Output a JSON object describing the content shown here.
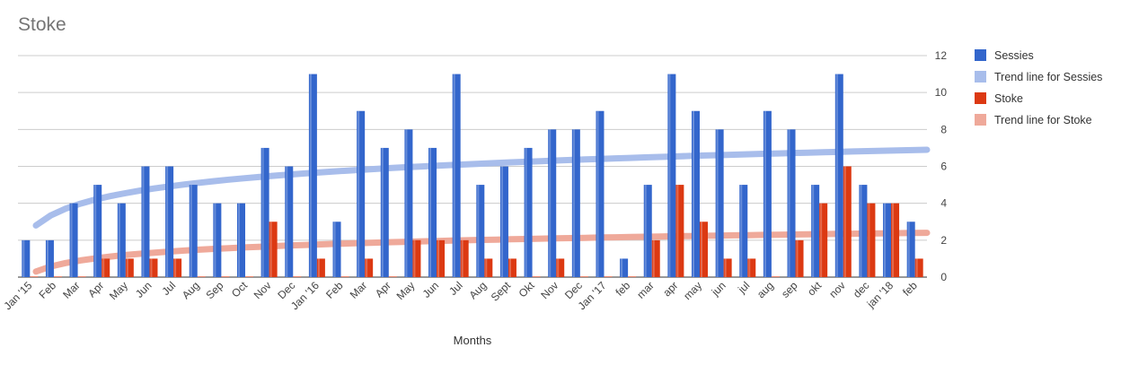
{
  "chart_data": {
    "type": "bar",
    "title": "Stoke",
    "xlabel": "Months",
    "ylabel": "",
    "ylim": [
      0,
      12
    ],
    "y_ticks": [
      0,
      2,
      4,
      6,
      8,
      10,
      12
    ],
    "y_axis_position": "right",
    "grid": true,
    "legend_position": "right",
    "categories": [
      "Jan '15",
      "Feb",
      "Mar",
      "Apr",
      "May",
      "Jun",
      "Jul",
      "Aug",
      "Sep",
      "Oct",
      "Nov",
      "Dec",
      "Jan '16",
      "Feb",
      "Mar",
      "Apr",
      "May",
      "Jun",
      "Jul",
      "Aug",
      "Sept",
      "Okt",
      "Nov",
      "Dec",
      "Jan '17",
      "feb",
      "mar",
      "apr",
      "may",
      "jun",
      "jul",
      "aug",
      "sep",
      "okt",
      "nov",
      "dec",
      "jan '18",
      "feb"
    ],
    "series": [
      {
        "name": "Sessies",
        "color": "#3366cc",
        "values": [
          2,
          2,
          4,
          5,
          4,
          6,
          6,
          5,
          4,
          4,
          7,
          6,
          11,
          3,
          9,
          7,
          8,
          7,
          11,
          5,
          6,
          7,
          8,
          8,
          9,
          1,
          5,
          11,
          9,
          8,
          5,
          9,
          8,
          5,
          11,
          5,
          4,
          3
        ]
      },
      {
        "name": "Stoke",
        "color": "#dc3912",
        "values": [
          0,
          0,
          0,
          1,
          1,
          1,
          1,
          0,
          0,
          0,
          3,
          0,
          1,
          0,
          1,
          0,
          2,
          2,
          2,
          1,
          1,
          0,
          1,
          0,
          0,
          0,
          2,
          5,
          3,
          1,
          1,
          0,
          2,
          4,
          6,
          4,
          4,
          1
        ]
      }
    ],
    "trendlines": [
      {
        "name": "Trend line for Sessies",
        "color": "#a8bdeb",
        "type": "logarithmic",
        "start": 2.8,
        "end": 6.9
      },
      {
        "name": "Trend line for Stoke",
        "color": "#efa99a",
        "type": "logarithmic",
        "start": 0.3,
        "end": 2.4
      }
    ]
  }
}
